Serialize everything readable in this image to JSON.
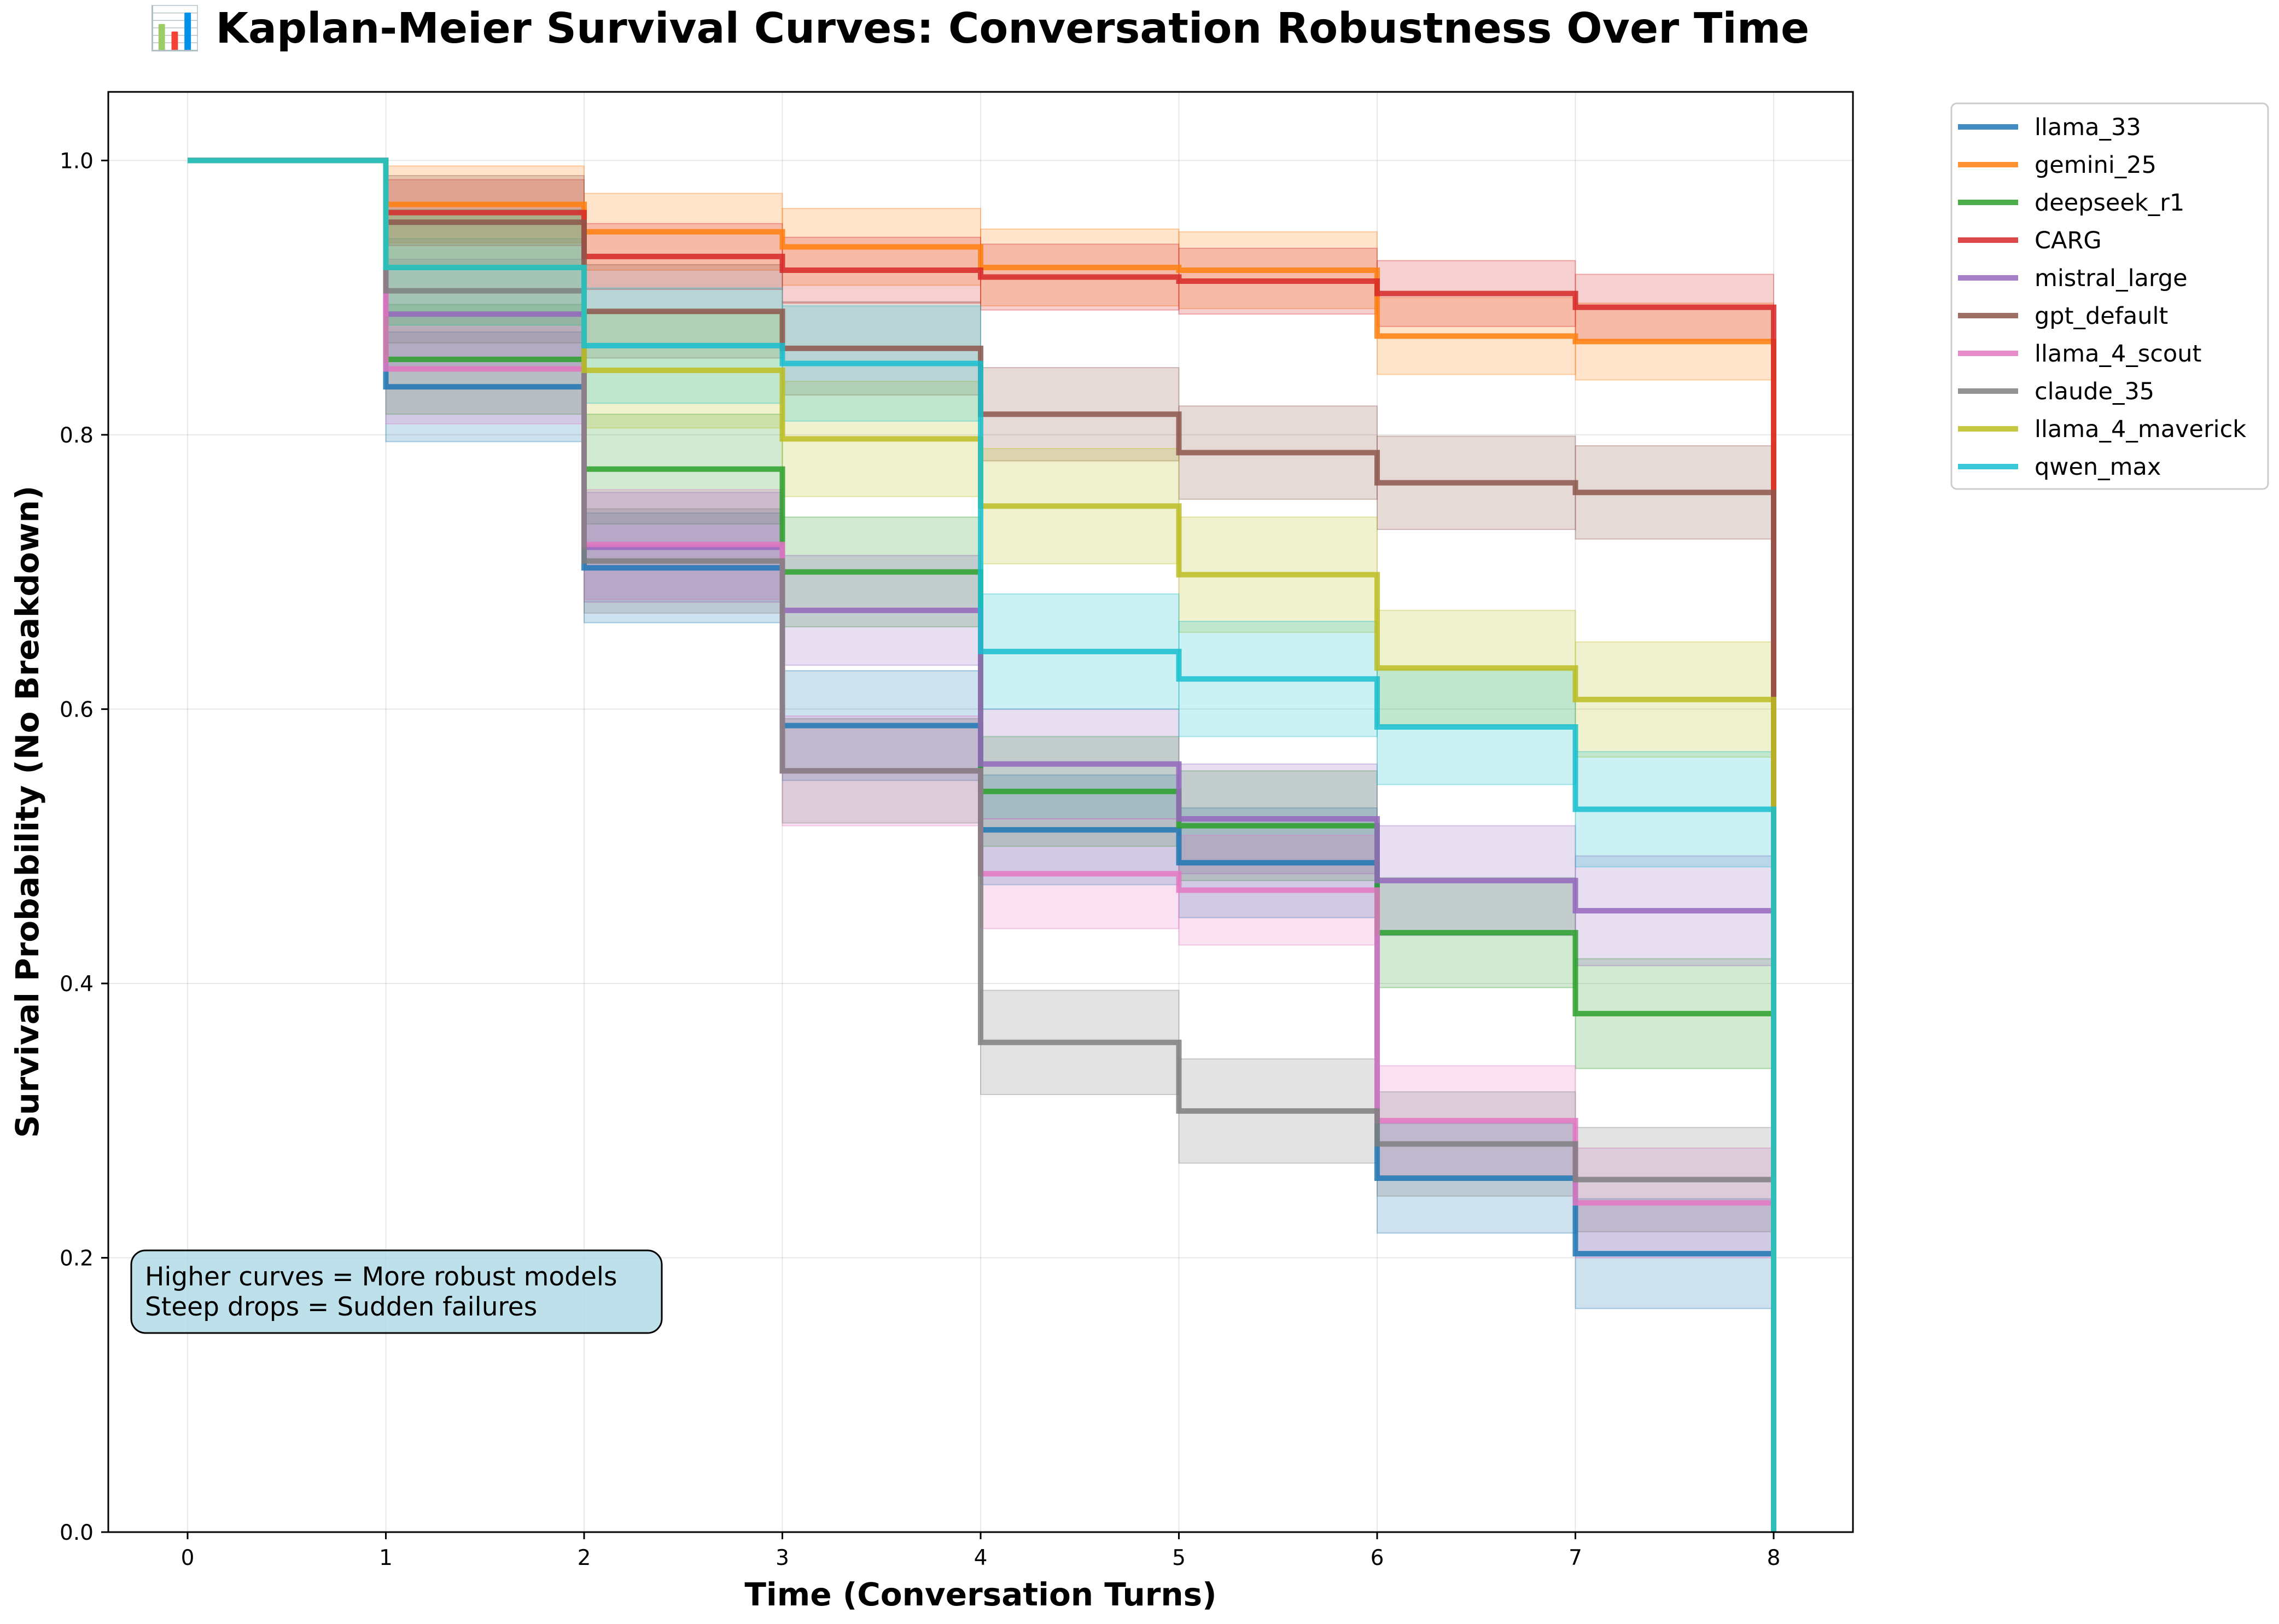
{
  "chart_data": {
    "type": "line",
    "title": "📊 Kaplan-Meier Survival Curves: Conversation Robustness Over Time",
    "xlabel": "Time (Conversation Turns)",
    "ylabel": "Survival Probability (No Breakdown)",
    "xlim": [
      -0.4,
      8.4
    ],
    "ylim": [
      0.0,
      1.05
    ],
    "x_ticks": [
      0,
      1,
      2,
      3,
      4,
      5,
      6,
      7,
      8
    ],
    "y_ticks": [
      0.0,
      0.2,
      0.4,
      0.6,
      0.8,
      1.0
    ],
    "grid": true,
    "legend_placement": "outside top-right",
    "step": "post",
    "x": [
      0,
      1,
      2,
      3,
      4,
      5,
      6,
      7,
      8
    ],
    "series": [
      {
        "name": "llama_33",
        "color": "#1f77b4",
        "values": [
          1.0,
          0.835,
          0.703,
          0.588,
          0.512,
          0.488,
          0.258,
          0.203,
          0.0
        ],
        "ci_halfwidth": 0.04
      },
      {
        "name": "gemini_25",
        "color": "#ff7f0e",
        "values": [
          1.0,
          0.968,
          0.948,
          0.937,
          0.922,
          0.92,
          0.872,
          0.868,
          0.0
        ],
        "ci_halfwidth": 0.028
      },
      {
        "name": "deepseek_r1",
        "color": "#2ca02c",
        "values": [
          1.0,
          0.855,
          0.775,
          0.7,
          0.54,
          0.515,
          0.437,
          0.378,
          0.0
        ],
        "ci_halfwidth": 0.04
      },
      {
        "name": "CARG",
        "color": "#d62728",
        "values": [
          1.0,
          0.962,
          0.93,
          0.92,
          0.915,
          0.912,
          0.903,
          0.893,
          0.0
        ],
        "ci_halfwidth": 0.024
      },
      {
        "name": "mistral_large",
        "color": "#9467bd",
        "values": [
          1.0,
          0.888,
          0.718,
          0.672,
          0.56,
          0.52,
          0.475,
          0.453,
          0.0
        ],
        "ci_halfwidth": 0.04
      },
      {
        "name": "gpt_default",
        "color": "#8c564b",
        "values": [
          1.0,
          0.955,
          0.89,
          0.863,
          0.815,
          0.787,
          0.765,
          0.758,
          0.0
        ],
        "ci_halfwidth": 0.034
      },
      {
        "name": "llama_4_scout",
        "color": "#e377c2",
        "values": [
          1.0,
          0.848,
          0.72,
          0.555,
          0.48,
          0.468,
          0.3,
          0.24,
          0.0
        ],
        "ci_halfwidth": 0.04
      },
      {
        "name": "claude_35",
        "color": "#7f7f7f",
        "values": [
          1.0,
          0.905,
          0.708,
          0.555,
          0.357,
          0.307,
          0.283,
          0.257,
          0.0
        ],
        "ci_halfwidth": 0.038
      },
      {
        "name": "llama_4_maverick",
        "color": "#bcbd22",
        "values": [
          1.0,
          0.922,
          0.847,
          0.797,
          0.748,
          0.698,
          0.63,
          0.607,
          0.0
        ],
        "ci_halfwidth": 0.042
      },
      {
        "name": "qwen_max",
        "color": "#17becf",
        "values": [
          1.0,
          0.922,
          0.865,
          0.852,
          0.642,
          0.622,
          0.587,
          0.527,
          0.0
        ],
        "ci_halfwidth": 0.042
      }
    ],
    "annotation": {
      "lines": [
        "Higher curves = More robust models",
        "Steep drops = Sudden failures"
      ],
      "background_color": "#add8e6"
    }
  }
}
